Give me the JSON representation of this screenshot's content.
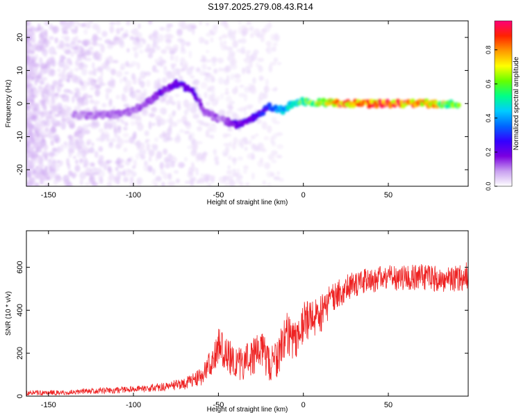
{
  "figure": {
    "title": "S197.2025.279.08.43.R14"
  },
  "chart_data": [
    {
      "type": "heatmap",
      "xlabel": "Height of straight line (km)",
      "ylabel": "Frequency (Hz)",
      "xlim": [
        -163,
        97
      ],
      "ylim": [
        -25,
        25
      ],
      "xticks": [
        -150,
        -100,
        -50,
        0,
        50
      ],
      "yticks": [
        -20,
        -10,
        0,
        10,
        20
      ],
      "colorbar": {
        "label": "Normalized spectral amplitude",
        "range": [
          0,
          0.97
        ],
        "ticks": [
          0.0,
          0.2,
          0.4,
          0.6,
          0.8
        ],
        "colormap": [
          "#ffffff",
          "#c9a0f0",
          "#7b00e0",
          "#3300ff",
          "#0066ff",
          "#00ccff",
          "#00ff88",
          "#66ff00",
          "#ffff00",
          "#ff9900",
          "#ff2200",
          "#ff0077"
        ]
      },
      "ridge": [
        {
          "x": -135,
          "freq": -3.5,
          "amp": 0.1
        },
        {
          "x": -120,
          "freq": -3.5,
          "amp": 0.12
        },
        {
          "x": -105,
          "freq": -3,
          "amp": 0.12
        },
        {
          "x": -95,
          "freq": -1,
          "amp": 0.14
        },
        {
          "x": -85,
          "freq": 3,
          "amp": 0.18
        },
        {
          "x": -75,
          "freq": 6,
          "amp": 0.2
        },
        {
          "x": -65,
          "freq": 4,
          "amp": 0.22
        },
        {
          "x": -58,
          "freq": -2.5,
          "amp": 0.15
        },
        {
          "x": -48,
          "freq": -5,
          "amp": 0.12
        },
        {
          "x": -38,
          "freq": -6.5,
          "amp": 0.2
        },
        {
          "x": -28,
          "freq": -4,
          "amp": 0.25
        },
        {
          "x": -20,
          "freq": -1,
          "amp": 0.3
        },
        {
          "x": -12,
          "freq": -2,
          "amp": 0.45
        },
        {
          "x": -5,
          "freq": 0.5,
          "amp": 0.55
        },
        {
          "x": 5,
          "freq": 0.5,
          "amp": 0.6
        },
        {
          "x": 20,
          "freq": 0,
          "amp": 0.85
        },
        {
          "x": 35,
          "freq": 0,
          "amp": 0.8
        },
        {
          "x": 50,
          "freq": 0,
          "amp": 0.85
        },
        {
          "x": 65,
          "freq": 0,
          "amp": 0.85
        },
        {
          "x": 80,
          "freq": 0,
          "amp": 0.7
        },
        {
          "x": 92,
          "freq": 0,
          "amp": 0.6
        }
      ]
    },
    {
      "type": "line",
      "xlabel": "Height of straight line (km)",
      "ylabel": "SNR (10 * v/v)",
      "xlim": [
        -163,
        97
      ],
      "ylim": [
        0,
        770
      ],
      "xticks": [
        -150,
        -100,
        -50,
        0,
        50
      ],
      "yticks": [
        0,
        200,
        400,
        600
      ],
      "color": "#ee2222",
      "envelope": {
        "x": [
          -163,
          -140,
          -120,
          -100,
          -80,
          -70,
          -60,
          -55,
          -50,
          -45,
          -40,
          -35,
          -30,
          -25,
          -20,
          -15,
          -10,
          -5,
          0,
          5,
          10,
          15,
          20,
          25,
          30,
          40,
          50,
          60,
          70,
          80,
          90,
          97
        ],
        "y": [
          15,
          18,
          25,
          30,
          45,
          60,
          90,
          150,
          230,
          180,
          160,
          150,
          180,
          220,
          150,
          170,
          300,
          260,
          350,
          350,
          380,
          430,
          470,
          510,
          520,
          540,
          550,
          550,
          555,
          545,
          550,
          560
        ],
        "amp": [
          12,
          12,
          14,
          16,
          20,
          30,
          40,
          60,
          90,
          90,
          80,
          80,
          90,
          90,
          80,
          90,
          110,
          100,
          100,
          90,
          90,
          80,
          70,
          70,
          60,
          60,
          60,
          60,
          60,
          60,
          65,
          70
        ]
      }
    }
  ]
}
